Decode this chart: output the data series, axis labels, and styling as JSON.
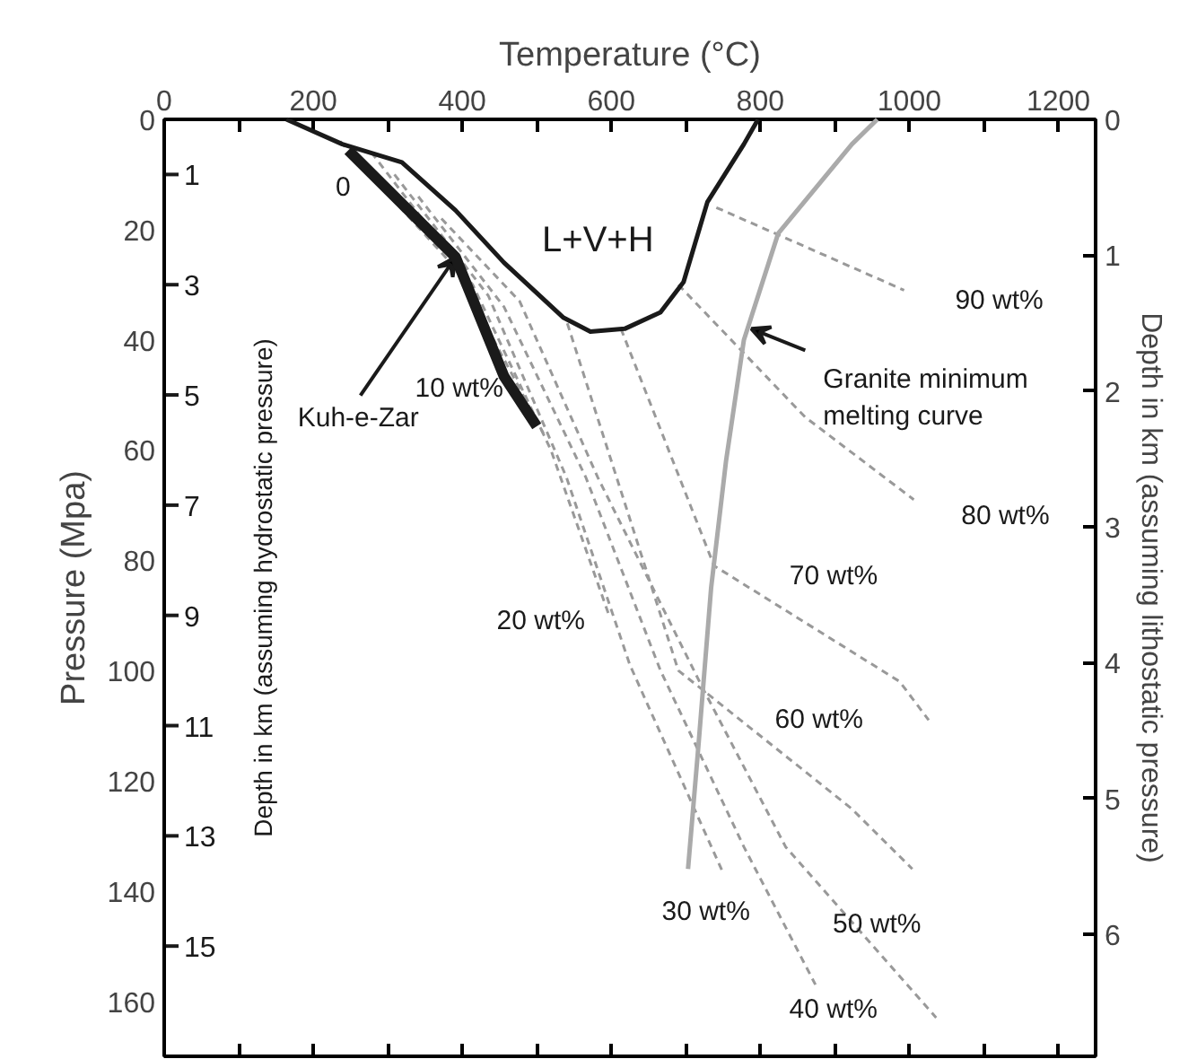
{
  "chart_data": {
    "type": "line",
    "xlabel": "Temperature (°C)",
    "ylabel": "Pressure (Mpa)",
    "y2label": "Depth in km (assuming lithostatic pressure)",
    "y3label": "Depth in km (assuming hydrostatic pressure)",
    "xlim": [
      0,
      1250
    ],
    "xticks": [
      0,
      {
        "value": 100,
        "label": null
      },
      200,
      {
        "value": 300,
        "label": null
      },
      400,
      {
        "value": 500,
        "label": null
      },
      600,
      {
        "value": 700,
        "label": null
      },
      800,
      {
        "value": 900,
        "label": null
      },
      1000,
      {
        "value": 1100,
        "label": null
      },
      1200
    ],
    "ylim": [
      170,
      0
    ],
    "yticks": [
      0,
      20,
      40,
      60,
      80,
      100,
      120,
      140,
      160
    ],
    "y2lim": [
      6.9,
      0
    ],
    "y2ticks": [
      0,
      1,
      2,
      3,
      4,
      5,
      6
    ],
    "y3lim": [
      17,
      0
    ],
    "y3ticks": [
      1,
      3,
      5,
      7,
      9,
      11,
      13,
      15
    ],
    "grid": false,
    "legend": false,
    "series": [
      {
        "color": "#1a1a1a",
        "line_style": "solid",
        "x": [
          164,
          239,
          319,
          391,
          456,
          536,
          572,
          618,
          666,
          697,
          729,
          778,
          797
        ],
        "values": [
          0,
          4.5,
          7.8,
          16.5,
          26,
          36,
          38.5,
          38,
          35,
          29.5,
          15,
          4.5,
          0
        ]
      },
      {
        "color": "#1a1a1a",
        "line_style": "solid",
        "x": [
          247,
          391,
          456,
          500
        ],
        "values": [
          5.6,
          25,
          46.6,
          55.7
        ]
      },
      {
        "name": "10 wt%",
        "color": "#999999",
        "line_style": "dashed",
        "x": [
          236,
          391,
          509
        ],
        "values": [
          4,
          27,
          57
        ]
      },
      {
        "name": "20 wt%",
        "color": "#999999",
        "line_style": "dashed",
        "x": [
          278,
          414,
          519,
          597
        ],
        "values": [
          6,
          30,
          60,
          90
        ]
      },
      {
        "name": "30 wt%",
        "color": "#999999",
        "line_style": "dashed",
        "x": [
          309,
          435,
          540,
          625,
          751
        ],
        "values": [
          10,
          32,
          65,
          99,
          137
        ]
      },
      {
        "name": "40 wt%",
        "color": "#999999",
        "line_style": "dashed",
        "x": [
          341,
          456,
          566,
          666,
          778,
          874
        ],
        "values": [
          14,
          34,
          65,
          100,
          132,
          157
        ]
      },
      {
        "name": "50 wt%",
        "color": "#999999",
        "line_style": "dashed",
        "x": [
          372,
          477,
          582,
          722,
          834,
          1036
        ],
        "values": [
          18,
          33,
          65,
          103,
          132,
          163
        ]
      },
      {
        "name": "60 wt%",
        "color": "#999999",
        "line_style": "dashed",
        "x": [
          541,
          690,
          922,
          1004
        ],
        "values": [
          37,
          100,
          125,
          136
        ]
      },
      {
        "name": "70 wt%",
        "color": "#999999",
        "line_style": "dashed",
        "x": [
          613,
          738,
          987,
          1026
        ],
        "values": [
          38,
          81,
          102,
          109
        ]
      },
      {
        "name": "80 wt%",
        "color": "#999999",
        "line_style": "dashed",
        "x": [
          690,
          860,
          1006
        ],
        "values": [
          30,
          54,
          69
        ]
      },
      {
        "name": "90 wt%",
        "color": "#999999",
        "line_style": "dashed",
        "x": [
          741,
          993
        ],
        "values": [
          16,
          31
        ]
      },
      {
        "color": "#aaaaaa",
        "line_style": "solid",
        "x": [
          957,
          923,
          824,
          778,
          754,
          734,
          717,
          703
        ],
        "values": [
          0,
          4.5,
          20.7,
          40,
          62,
          85,
          113.6,
          136
        ]
      }
    ],
    "annotations": [
      "L+V+H",
      "0",
      {
        "text": "Kuh-e-Zar",
        "x": 391,
        "y": 25
      },
      {
        "text": "Granite minimum melting curve",
        "x": 788,
        "y": 38
      }
    ]
  }
}
